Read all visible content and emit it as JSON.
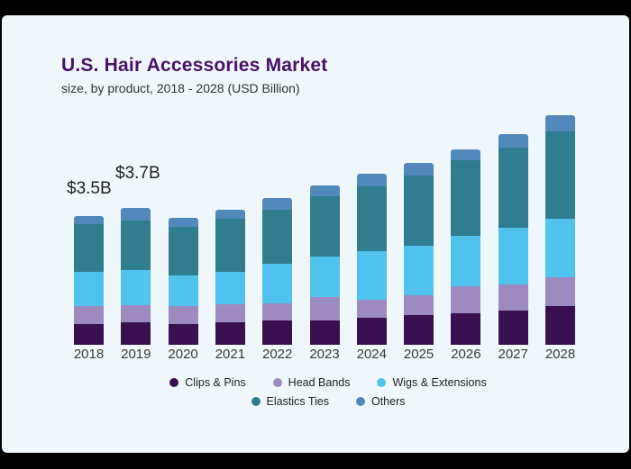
{
  "window": {
    "frame_color": "#000000",
    "content_bg": "#eff7fa"
  },
  "header": {
    "title": "U.S. Hair Accessories Market",
    "subtitle": "size, by product, 2018 - 2028 (USD Billion)",
    "title_color": "#4a1168"
  },
  "chart_data": {
    "type": "bar",
    "stacked": true,
    "title": "U.S. Hair Accessories Market",
    "subtitle": "size, by product, 2018 - 2028 (USD Billion)",
    "unit": "USD Billion",
    "categories": [
      "2018",
      "2019",
      "2020",
      "2021",
      "2022",
      "2023",
      "2024",
      "2025",
      "2026",
      "2027",
      "2028"
    ],
    "series": [
      {
        "name": "Clips & Pins",
        "color": "#3a1050",
        "values": [
          0.56,
          0.61,
          0.56,
          0.61,
          0.66,
          0.66,
          0.73,
          0.81,
          0.85,
          0.93,
          1.05
        ]
      },
      {
        "name": "Head Bands",
        "color": "#9c8ac1",
        "values": [
          0.49,
          0.47,
          0.49,
          0.49,
          0.46,
          0.63,
          0.49,
          0.54,
          0.73,
          0.71,
          0.78
        ]
      },
      {
        "name": "Wigs & Extensions",
        "color": "#4fc3ee",
        "values": [
          0.93,
          0.94,
          0.83,
          0.88,
          1.07,
          1.1,
          1.32,
          1.34,
          1.37,
          1.54,
          1.59
        ]
      },
      {
        "name": "Elastics Ties",
        "color": "#2f7d8e",
        "values": [
          1.3,
          1.35,
          1.32,
          1.44,
          1.47,
          1.64,
          1.76,
          1.9,
          2.05,
          2.15,
          2.37
        ]
      },
      {
        "name": "Others",
        "color": "#5289bd",
        "values": [
          0.22,
          0.33,
          0.24,
          0.24,
          0.32,
          0.29,
          0.34,
          0.34,
          0.29,
          0.39,
          0.44
        ]
      }
    ],
    "totals": [
      3.5,
      3.7,
      3.44,
      3.66,
      3.98,
      4.32,
      4.64,
      4.93,
      5.29,
      5.72,
      6.23
    ],
    "annotations": [
      {
        "category": "2018",
        "text": "$3.5B"
      },
      {
        "category": "2019",
        "text": "$3.7B"
      }
    ],
    "ylim": [
      0,
      6.5
    ],
    "grid": false,
    "legend_position": "bottom"
  }
}
